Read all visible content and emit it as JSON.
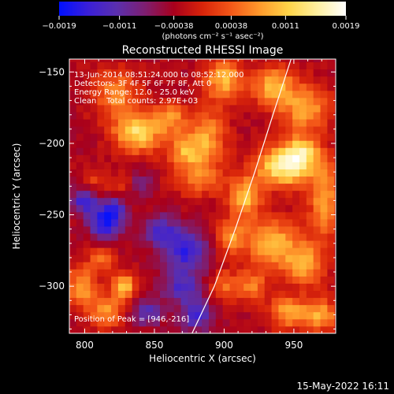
{
  "chart_data": {
    "type": "heatmap",
    "title": "Reconstructed RHESSI Image",
    "xlabel": "Heliocentric X (arcsec)",
    "ylabel": "Heliocentric Y (arcsec)",
    "xlim": [
      789,
      980
    ],
    "ylim": [
      -333,
      -141
    ],
    "x_ticks": [
      800,
      850,
      900,
      950
    ],
    "x_tick_labels": [
      "800",
      "850",
      "900",
      "950"
    ],
    "y_ticks": [
      -150,
      -200,
      -250,
      -300
    ],
    "y_tick_labels": [
      "−150",
      "−200",
      "−250",
      "−300"
    ],
    "colorbar": {
      "min": -0.0019,
      "max": 0.0019,
      "ticks": [
        -0.0019,
        -0.0011,
        -0.00038,
        0.00038,
        0.0011,
        0.0019
      ],
      "tick_labels": [
        "−0.0019",
        "−0.0011",
        "−0.00038",
        "0.00038",
        "0.0011",
        "0.0019"
      ],
      "units_label": "(photons cm⁻² s⁻¹ asec⁻²)",
      "stops": [
        "#0010ff",
        "#3a1fd8",
        "#5a2fae",
        "#7e1e70",
        "#a8001c",
        "#d8240a",
        "#f45818",
        "#ff9a2c",
        "#ffd448",
        "#fff0a0",
        "#ffffff"
      ]
    },
    "limb_curve": [
      [
        948,
        -141
      ],
      [
        935,
        -180
      ],
      [
        922,
        -220
      ],
      [
        908,
        -260
      ],
      [
        893,
        -300
      ],
      [
        877,
        -333
      ]
    ],
    "sources": [
      {
        "x": 943,
        "y": -216,
        "amp": 0.0019,
        "sx": 14,
        "sy": 10
      },
      {
        "x": 956,
        "y": -206,
        "amp": 0.0012,
        "sx": 8,
        "sy": 8
      },
      {
        "x": 915,
        "y": -238,
        "amp": 0.0014,
        "sx": 8,
        "sy": 10
      },
      {
        "x": 935,
        "y": -270,
        "amp": 0.0013,
        "sx": 14,
        "sy": 12
      },
      {
        "x": 905,
        "y": -265,
        "amp": 0.001,
        "sx": 7,
        "sy": 8
      },
      {
        "x": 958,
        "y": -285,
        "amp": 0.0011,
        "sx": 10,
        "sy": 10
      },
      {
        "x": 838,
        "y": -192,
        "amp": 0.0016,
        "sx": 12,
        "sy": 10
      },
      {
        "x": 822,
        "y": -165,
        "amp": 0.001,
        "sx": 12,
        "sy": 12
      },
      {
        "x": 862,
        "y": -182,
        "amp": 0.001,
        "sx": 8,
        "sy": 8
      },
      {
        "x": 872,
        "y": -206,
        "amp": 0.0011,
        "sx": 9,
        "sy": 8
      },
      {
        "x": 888,
        "y": -195,
        "amp": 0.0011,
        "sx": 10,
        "sy": 14
      },
      {
        "x": 882,
        "y": -225,
        "amp": 0.0009,
        "sx": 12,
        "sy": 8
      },
      {
        "x": 900,
        "y": -155,
        "amp": 0.0013,
        "sx": 10,
        "sy": 10
      },
      {
        "x": 935,
        "y": -160,
        "amp": 0.0013,
        "sx": 10,
        "sy": 10
      },
      {
        "x": 958,
        "y": -175,
        "amp": 0.0012,
        "sx": 12,
        "sy": 12
      },
      {
        "x": 972,
        "y": -240,
        "amp": 0.0011,
        "sx": 8,
        "sy": 20
      },
      {
        "x": 798,
        "y": -300,
        "amp": 0.0012,
        "sx": 8,
        "sy": 10
      },
      {
        "x": 815,
        "y": -318,
        "amp": 0.0011,
        "sx": 8,
        "sy": 8
      },
      {
        "x": 828,
        "y": -300,
        "amp": 0.0014,
        "sx": 6,
        "sy": 7
      },
      {
        "x": 812,
        "y": -280,
        "amp": 0.0009,
        "sx": 6,
        "sy": 6
      },
      {
        "x": 900,
        "y": -300,
        "amp": 0.0008,
        "sx": 7,
        "sy": 8
      },
      {
        "x": 920,
        "y": -300,
        "amp": 0.0009,
        "sx": 8,
        "sy": 8
      },
      {
        "x": 945,
        "y": -318,
        "amp": 0.0011,
        "sx": 9,
        "sy": 8
      },
      {
        "x": 968,
        "y": -320,
        "amp": 0.0012,
        "sx": 10,
        "sy": 8
      },
      {
        "x": 808,
        "y": -226,
        "amp": 0.0005,
        "sx": 6,
        "sy": 6
      },
      {
        "x": 830,
        "y": -228,
        "amp": 0.0006,
        "sx": 7,
        "sy": 6
      }
    ],
    "negative_sources": [
      {
        "x": 815,
        "y": -255,
        "amp": 0.0014,
        "sx": 8,
        "sy": 8
      },
      {
        "x": 800,
        "y": -240,
        "amp": 0.0012,
        "sx": 6,
        "sy": 6
      },
      {
        "x": 838,
        "y": -228,
        "amp": 0.0008,
        "sx": 6,
        "sy": 6
      },
      {
        "x": 873,
        "y": -275,
        "amp": 0.0012,
        "sx": 10,
        "sy": 10
      },
      {
        "x": 855,
        "y": -262,
        "amp": 0.001,
        "sx": 8,
        "sy": 8
      },
      {
        "x": 870,
        "y": -300,
        "amp": 0.0009,
        "sx": 10,
        "sy": 8
      },
      {
        "x": 845,
        "y": -318,
        "amp": 0.0009,
        "sx": 8,
        "sy": 6
      },
      {
        "x": 880,
        "y": -320,
        "amp": 0.001,
        "sx": 8,
        "sy": 8
      },
      {
        "x": 822,
        "y": -245,
        "amp": 0.0007,
        "sx": 6,
        "sy": 6
      }
    ],
    "background": -0.00035,
    "annotations": [
      "13-Jun-2014 08:51:24.000 to 08:52:12.000",
      "Detectors: 3F 4F 5F 6F 7F 8F, Att 0",
      "Energy Range: 12.0 - 25.0 keV",
      "Clean    Total counts: 2.97E+03"
    ],
    "peak_label": "Position of Peak = [946,-216]",
    "peak": [
      946,
      -216
    ],
    "footer_date": "15-May-2022 16:11"
  }
}
